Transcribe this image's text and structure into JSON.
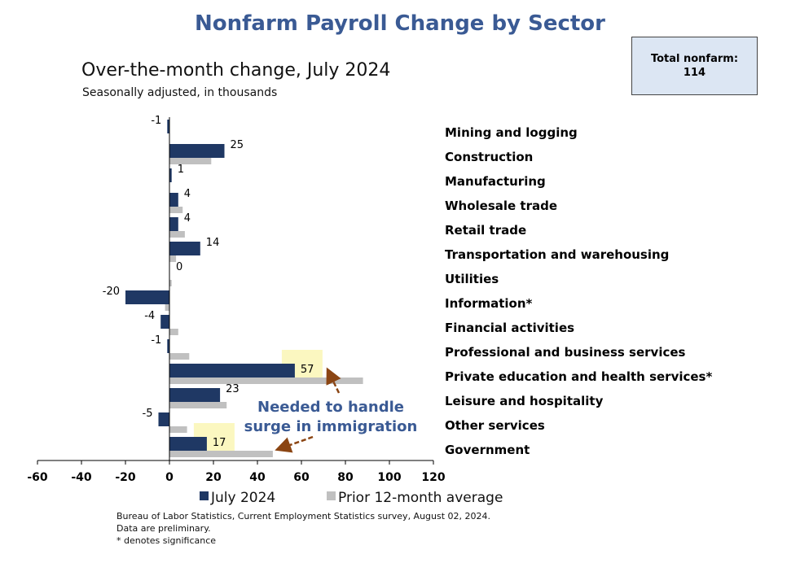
{
  "header": {
    "title": "Nonfarm Payroll Change by Sector",
    "subtitle": "Over-the-month change, July 2024",
    "units": "Seasonally adjusted, in thousands"
  },
  "total_box": {
    "label": "Total nonfarm:",
    "value": "114"
  },
  "annotation": {
    "line1": "Needed to handle",
    "line2": "surge in immigration",
    "color": "#3a5a94",
    "arrow_color": "#8b4513",
    "highlight_color": "#fbf7c0"
  },
  "footnotes": {
    "line1": "Bureau of Labor Statistics, Current Employment Statistics survey, August 02, 2024.",
    "line2": "Data are preliminary.",
    "line3": "* denotes significance"
  },
  "chart_data": {
    "type": "bar",
    "orientation": "horizontal",
    "categories": [
      "Mining and logging",
      "Construction",
      "Manufacturing",
      "Wholesale trade",
      "Retail trade",
      "Transportation and warehousing",
      "Utilities",
      "Information*",
      "Financial activities",
      "Professional and business services",
      "Private education and health services*",
      "Leisure and hospitality",
      "Other services",
      "Government"
    ],
    "series": [
      {
        "name": "July 2024",
        "color": "#1f3864",
        "values": [
          -1,
          25,
          1,
          4,
          4,
          14,
          0,
          -20,
          -4,
          -1,
          57,
          23,
          -5,
          17
        ],
        "labels": [
          "-1",
          "25",
          "1",
          "4",
          "4",
          "14",
          "0",
          "-20",
          "-4",
          "-1",
          "57",
          "23",
          "-5",
          "17"
        ]
      },
      {
        "name": "Prior 12-month average",
        "color": "#c0c0c0",
        "values": [
          0,
          19,
          0,
          6,
          7,
          3,
          1,
          -2,
          4,
          9,
          88,
          26,
          8,
          47
        ]
      }
    ],
    "highlighted_categories": [
      "Private education and health services*",
      "Government"
    ],
    "xlim": [
      -60,
      120
    ],
    "xticks": [
      "-60",
      "-40",
      "-20",
      "0",
      "20",
      "40",
      "60",
      "80",
      "100",
      "120"
    ],
    "grid": false,
    "legend_position": "bottom"
  }
}
